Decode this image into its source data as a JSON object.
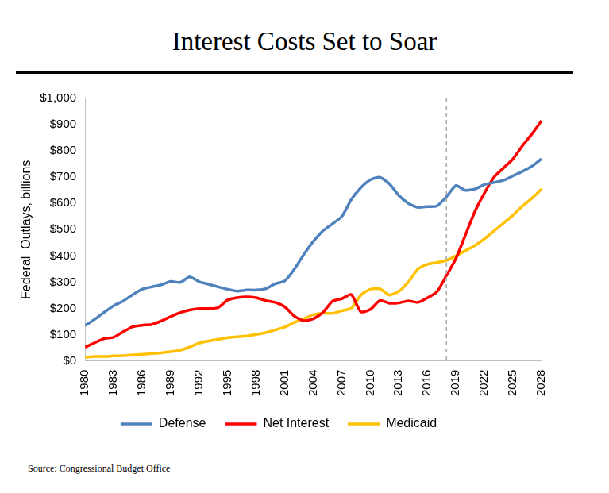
{
  "chart_data": {
    "type": "line",
    "title": "Interest Costs Set to Soar",
    "source": "Source: Congressional Budget Office",
    "y_label": "Federal  Outlays, billions",
    "x": [
      1980,
      1981,
      1982,
      1983,
      1984,
      1985,
      1986,
      1987,
      1988,
      1989,
      1990,
      1991,
      1992,
      1993,
      1994,
      1995,
      1996,
      1997,
      1998,
      1999,
      2000,
      2001,
      2002,
      2003,
      2004,
      2005,
      2006,
      2007,
      2008,
      2009,
      2010,
      2011,
      2012,
      2013,
      2014,
      2015,
      2016,
      2017,
      2018,
      2019,
      2020,
      2021,
      2022,
      2023,
      2024,
      2025,
      2026,
      2027,
      2028
    ],
    "series": [
      {
        "name": "Defense",
        "color": "#4f81bd",
        "values": [
          135,
          158,
          185,
          210,
          228,
          252,
          273,
          282,
          290,
          303,
          299,
          320,
          302,
          292,
          282,
          273,
          266,
          270,
          270,
          275,
          294,
          305,
          349,
          405,
          455,
          495,
          522,
          550,
          615,
          660,
          690,
          700,
          675,
          630,
          600,
          585,
          588,
          590,
          625,
          668,
          650,
          655,
          672,
          680,
          688,
          705,
          722,
          742,
          770
        ]
      },
      {
        "name": "Net Interest",
        "color": "#ff0000",
        "values": [
          52,
          69,
          85,
          90,
          111,
          130,
          136,
          139,
          152,
          169,
          184,
          194,
          199,
          199,
          203,
          232,
          241,
          244,
          241,
          230,
          223,
          206,
          171,
          153,
          160,
          184,
          227,
          237,
          253,
          187,
          196,
          230,
          220,
          221,
          229,
          223,
          240,
          263,
          325,
          390,
          480,
          570,
          640,
          700,
          735,
          770,
          820,
          865,
          915
        ]
      },
      {
        "name": "Medicaid",
        "color": "#ffc000",
        "values": [
          14,
          17,
          17,
          19,
          20,
          23,
          25,
          28,
          31,
          35,
          41,
          53,
          68,
          76,
          82,
          89,
          92,
          95,
          101,
          108,
          118,
          129,
          147,
          161,
          176,
          182,
          181,
          191,
          201,
          251,
          273,
          275,
          251,
          265,
          301,
          350,
          368,
          375,
          383,
          400,
          420,
          440,
          465,
          495,
          525,
          555,
          590,
          620,
          655
        ]
      }
    ],
    "xlim": [
      1980,
      2028
    ],
    "xticks": [
      1980,
      1983,
      1986,
      1989,
      1992,
      1995,
      1998,
      2001,
      2004,
      2007,
      2010,
      2013,
      2016,
      2019,
      2022,
      2025,
      2028
    ],
    "ylim": [
      0,
      1000
    ],
    "yticks": [
      {
        "value": 0,
        "label": "$0"
      },
      {
        "value": 100,
        "label": "$100"
      },
      {
        "value": 200,
        "label": "$200"
      },
      {
        "value": 300,
        "label": "$300"
      },
      {
        "value": 400,
        "label": "$400"
      },
      {
        "value": 500,
        "label": "$500"
      },
      {
        "value": 600,
        "label": "$600"
      },
      {
        "value": 700,
        "label": "$700"
      },
      {
        "value": 800,
        "label": "$800"
      },
      {
        "value": 900,
        "label": "$900"
      },
      {
        "value": 1000,
        "label": "$1,000"
      }
    ],
    "vline": 2018,
    "grid": false,
    "legend": "bottom"
  }
}
